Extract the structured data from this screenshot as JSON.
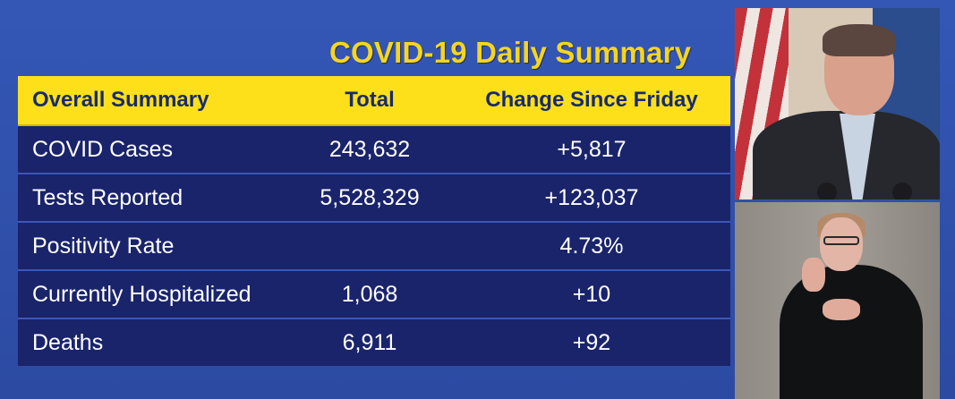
{
  "title": "COVID-19 Daily Summary",
  "table": {
    "headers": [
      "Overall Summary",
      "Total",
      "Change Since Friday"
    ],
    "rows": [
      {
        "label": "COVID Cases",
        "total": "243,632",
        "change": "+5,817"
      },
      {
        "label": "Tests Reported",
        "total": "5,528,329",
        "change": "+123,037"
      },
      {
        "label": "Positivity Rate",
        "total": "",
        "change": "4.73%"
      },
      {
        "label": "Currently Hospitalized",
        "total": "1,068",
        "change": "+10"
      },
      {
        "label": "Deaths",
        "total": "6,911",
        "change": "+92"
      }
    ]
  },
  "colors": {
    "background": "#3150ad",
    "title": "#f6d51f",
    "header_bg": "#fde01a",
    "header_text": "#1a2a6e",
    "table_bg": "#1a246b",
    "row_text": "#ffffff"
  },
  "videos": [
    "speaker-video",
    "interpreter-video"
  ]
}
